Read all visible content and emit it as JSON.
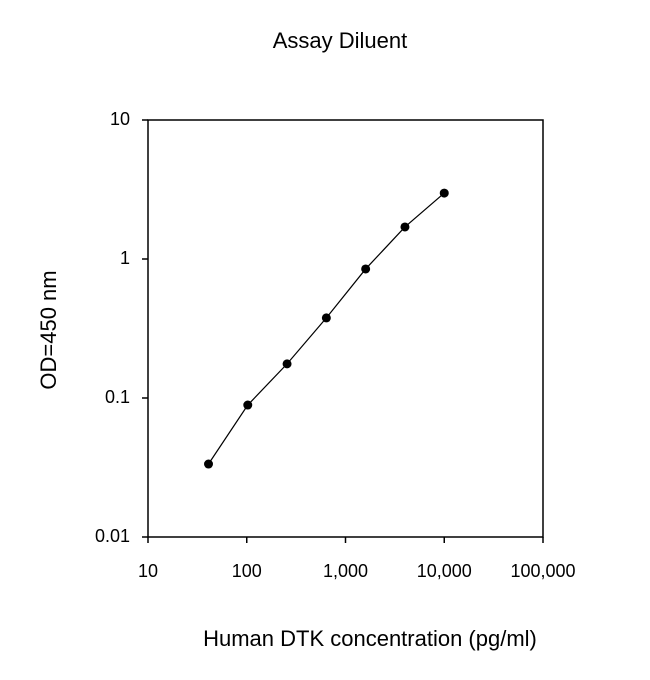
{
  "chart_data": {
    "type": "line",
    "title": "Assay Diluent",
    "x_label": "Human DTK concentration (pg/ml)",
    "y_label": "OD=450 nm",
    "x_log": true,
    "y_log": true,
    "grid": false,
    "markers": true,
    "series": [
      {
        "color": "#000000",
        "x": [
          41,
          102.4,
          256,
          640,
          1600,
          4000,
          10000
        ],
        "values": [
          0.0335,
          0.089,
          0.176,
          0.377,
          0.848,
          1.7,
          2.98
        ]
      }
    ],
    "xlim": [
      10,
      100000
    ],
    "xticks": [
      10,
      100,
      {
        "value": 1000,
        "label": "1,000"
      },
      {
        "value": 10000,
        "label": "10,000"
      },
      {
        "value": 100000,
        "label": "100,000"
      }
    ],
    "ylim": [
      0.01,
      10
    ],
    "yticks": [
      0.01,
      0.1,
      1,
      10
    ]
  }
}
